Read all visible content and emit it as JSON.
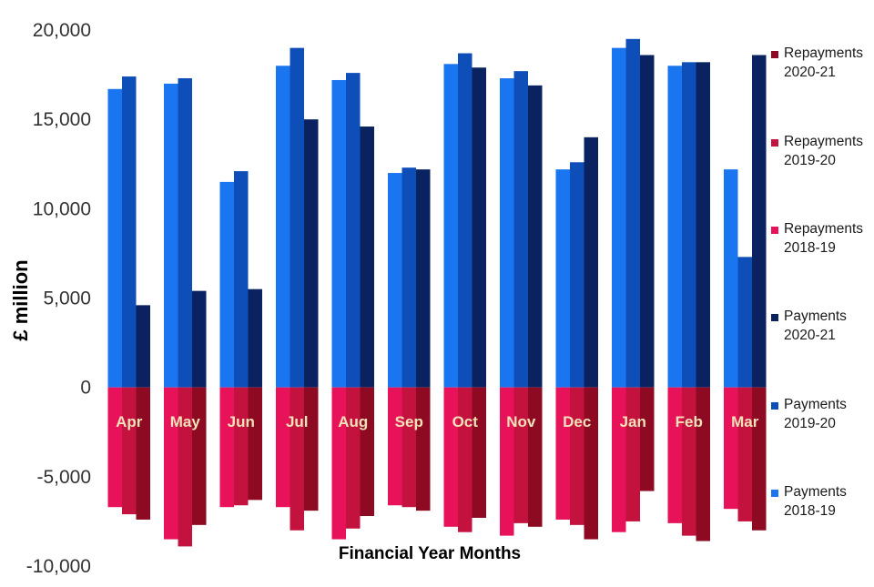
{
  "chart_data": {
    "type": "bar",
    "title": "",
    "ylabel": "£ million",
    "xlabel": "Financial Year Months",
    "ylim": [
      -10000,
      20000
    ],
    "yticks": [
      20000,
      15000,
      10000,
      5000,
      0,
      -5000,
      -10000
    ],
    "ytick_labels": [
      "20,000",
      "15,000",
      "10,000",
      "5,000",
      "0",
      "-5,000",
      "-10,000"
    ],
    "categories": [
      "Apr",
      "May",
      "Jun",
      "Jul",
      "Aug",
      "Sep",
      "Oct",
      "Nov",
      "Dec",
      "Jan",
      "Feb",
      "Mar"
    ],
    "legend_position": "right",
    "series": [
      {
        "name": "Payments 2018-19",
        "legend_lines": [
          "Payments",
          "2018-19"
        ],
        "color": "#1A75F0",
        "values": [
          16700,
          17000,
          11500,
          18000,
          17200,
          12000,
          18100,
          17300,
          12200,
          19000,
          18000,
          12200
        ]
      },
      {
        "name": "Payments 2019-20",
        "legend_lines": [
          "Payments",
          "2019-20"
        ],
        "color": "#0D4EB8",
        "values": [
          17400,
          17300,
          12100,
          19000,
          17600,
          12300,
          18700,
          17700,
          12600,
          19500,
          18200,
          7300
        ]
      },
      {
        "name": "Payments 2020-21",
        "legend_lines": [
          "Payments",
          "2020-21"
        ],
        "color": "#0A2360",
        "values": [
          4600,
          5400,
          5500,
          15000,
          14600,
          12200,
          17900,
          16900,
          14000,
          18600,
          18200,
          18600
        ]
      },
      {
        "name": "Repayments 2018-19",
        "legend_lines": [
          "Repayments",
          "2018-19"
        ],
        "color": "#E8125A",
        "values": [
          -6700,
          -8500,
          -6700,
          -6700,
          -8500,
          -6600,
          -7800,
          -8300,
          -7400,
          -8100,
          -7600,
          -6800
        ]
      },
      {
        "name": "Repayments 2019-20",
        "legend_lines": [
          "Repayments",
          "2019-20"
        ],
        "color": "#C4123F",
        "values": [
          -7100,
          -8900,
          -6600,
          -8000,
          -7900,
          -6700,
          -8100,
          -7600,
          -7700,
          -7500,
          -8300,
          -7500
        ]
      },
      {
        "name": "Repayments 2020-21",
        "legend_lines": [
          "Repayments",
          "2020-21"
        ],
        "color": "#8E0A22",
        "values": [
          -7400,
          -7700,
          -6300,
          -6900,
          -7200,
          -6900,
          -7300,
          -7800,
          -8500,
          -5800,
          -8600,
          -8000
        ]
      }
    ],
    "legend_order": [
      5,
      4,
      3,
      2,
      1,
      0
    ],
    "label_colors": {
      "month_labels": "#EFE2B8",
      "tick_labels": "#333333"
    }
  }
}
